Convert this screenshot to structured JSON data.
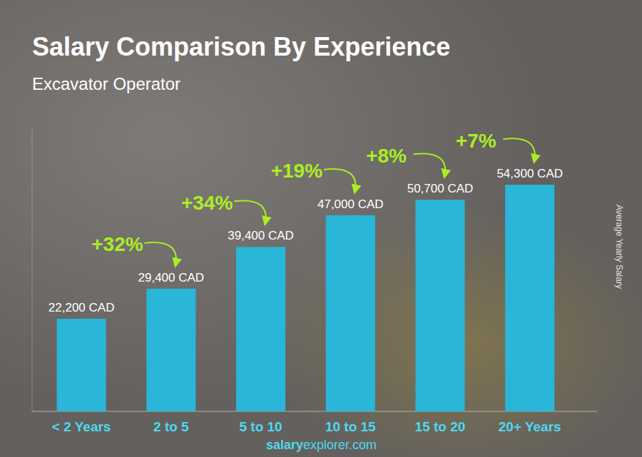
{
  "chart_data": {
    "type": "bar",
    "title": "Salary Comparison By Experience",
    "subtitle": "Excavator Operator",
    "ylabel": "Average Yearly Salary",
    "watermark": [
      "salary",
      "explorer.com"
    ],
    "categories": [
      "< 2 Years",
      "2 to 5",
      "5 to 10",
      "10 to 15",
      "15 to 20",
      "20+ Years"
    ],
    "values": [
      22200,
      29400,
      39400,
      47000,
      50700,
      54300
    ],
    "value_labels": [
      "22,200 CAD",
      "29,400 CAD",
      "39,400 CAD",
      "47,000 CAD",
      "50,700 CAD",
      "54,300 CAD"
    ],
    "annotations": [
      "+32%",
      "+34%",
      "+19%",
      "+8%",
      "+7%"
    ],
    "color": "#29b6d8",
    "ylim": [
      0,
      68000
    ],
    "data_labels": true,
    "tick_labels": "x",
    "grid": false
  }
}
